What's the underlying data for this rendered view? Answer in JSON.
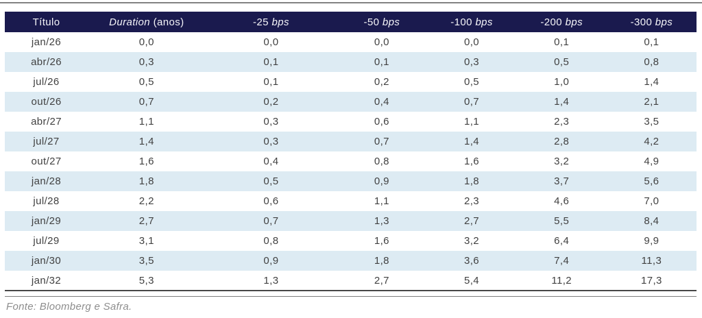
{
  "table": {
    "columns": [
      {
        "plain": "Título",
        "italic": "",
        "plain2": ""
      },
      {
        "plain": "",
        "italic": "Duration",
        "plain2": " (anos)"
      },
      {
        "plain": "-25 ",
        "italic": "bps",
        "plain2": ""
      },
      {
        "plain": "-50 ",
        "italic": "bps",
        "plain2": ""
      },
      {
        "plain": "-100 ",
        "italic": "bps",
        "plain2": ""
      },
      {
        "plain": "-200 ",
        "italic": "bps",
        "plain2": ""
      },
      {
        "plain": "-300 ",
        "italic": "bps",
        "plain2": ""
      }
    ],
    "rows": [
      {
        "label": "jan/26",
        "values": [
          "0,0",
          "0,0",
          "0,0",
          "0,0",
          "0,1",
          "0,1"
        ]
      },
      {
        "label": "abr/26",
        "values": [
          "0,3",
          "0,1",
          "0,1",
          "0,3",
          "0,5",
          "0,8"
        ]
      },
      {
        "label": "jul/26",
        "values": [
          "0,5",
          "0,1",
          "0,2",
          "0,5",
          "1,0",
          "1,4"
        ]
      },
      {
        "label": "out/26",
        "values": [
          "0,7",
          "0,2",
          "0,4",
          "0,7",
          "1,4",
          "2,1"
        ]
      },
      {
        "label": "abr/27",
        "values": [
          "1,1",
          "0,3",
          "0,6",
          "1,1",
          "2,3",
          "3,5"
        ]
      },
      {
        "label": "jul/27",
        "values": [
          "1,4",
          "0,3",
          "0,7",
          "1,4",
          "2,8",
          "4,2"
        ]
      },
      {
        "label": "out/27",
        "values": [
          "1,6",
          "0,4",
          "0,8",
          "1,6",
          "3,2",
          "4,9"
        ]
      },
      {
        "label": "jan/28",
        "values": [
          "1,8",
          "0,5",
          "0,9",
          "1,8",
          "3,7",
          "5,6"
        ]
      },
      {
        "label": "jul/28",
        "values": [
          "2,2",
          "0,6",
          "1,1",
          "2,3",
          "4,6",
          "7,0"
        ]
      },
      {
        "label": "jan/29",
        "values": [
          "2,7",
          "0,7",
          "1,3",
          "2,7",
          "5,5",
          "8,4"
        ]
      },
      {
        "label": "jul/29",
        "values": [
          "3,1",
          "0,8",
          "1,6",
          "3,2",
          "6,4",
          "9,9"
        ]
      },
      {
        "label": "jan/30",
        "values": [
          "3,5",
          "0,9",
          "1,8",
          "3,6",
          "7,4",
          "11,3"
        ]
      },
      {
        "label": "jan/32",
        "values": [
          "5,3",
          "1,3",
          "2,7",
          "5,4",
          "11,2",
          "17,3"
        ]
      }
    ]
  },
  "footer": {
    "source": "Fonte: Bloomberg e Safra."
  },
  "colors": {
    "header_bg": "#1a1a4e",
    "header_text": "#f4f4f8",
    "row_alt_bg": "#ddebf3",
    "body_text": "#414141",
    "footer_text": "#8d8d8d",
    "rule_gray": "#828282"
  }
}
